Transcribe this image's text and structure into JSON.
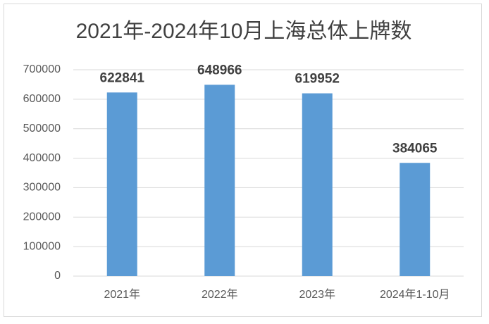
{
  "chart_data": {
    "type": "bar",
    "title": "2021年-2024年10月上海总体上牌数",
    "categories": [
      "2021年",
      "2022年",
      "2023年",
      "2024年1-10月"
    ],
    "values": [
      622841,
      648966,
      619952,
      384065
    ],
    "color": "#5b9bd5",
    "ylim": [
      0,
      700000
    ],
    "yticks": [
      0,
      100000,
      200000,
      300000,
      400000,
      500000,
      600000,
      700000
    ],
    "grid": true
  }
}
